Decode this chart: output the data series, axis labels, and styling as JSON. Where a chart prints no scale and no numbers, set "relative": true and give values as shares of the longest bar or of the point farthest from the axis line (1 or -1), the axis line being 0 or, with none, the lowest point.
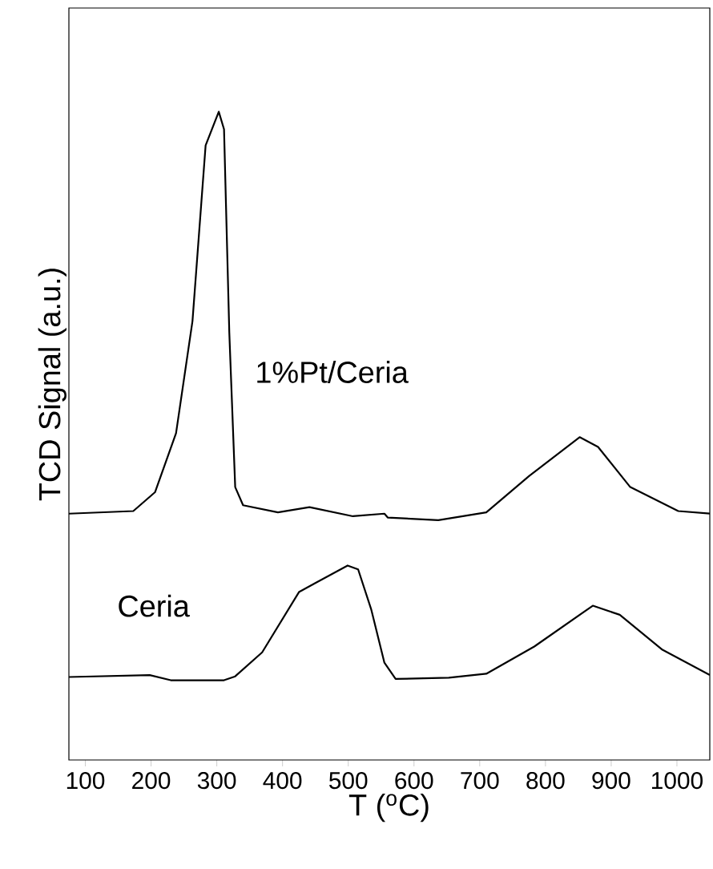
{
  "chart_data": {
    "type": "line",
    "relative": true,
    "xlabel": "T ($^{o}$C)",
    "ylabel": "TCD Signal (a.u.)",
    "xlim": [
      75,
      1050
    ],
    "xticks": [
      100,
      200,
      300,
      400,
      500,
      600,
      700,
      800,
      900,
      1000
    ],
    "grid": false,
    "legend": false,
    "marker": "none",
    "line_style": "solid",
    "series": [
      {
        "name": "1%Pt/Ceria",
        "color": "#000000",
        "x": [
          75,
          173,
          206,
          238,
          263,
          283,
          303,
          311,
          319,
          328,
          340,
          393,
          441,
          507,
          555,
          560,
          637,
          710,
          775,
          852,
          880,
          929,
          1002,
          1050
        ],
        "values": [
          0.38,
          0.384,
          0.413,
          0.504,
          0.677,
          0.948,
          1.0,
          0.973,
          0.66,
          0.421,
          0.393,
          0.382,
          0.39,
          0.376,
          0.38,
          0.374,
          0.37,
          0.382,
          0.438,
          0.498,
          0.483,
          0.421,
          0.384,
          0.38
        ]
      },
      {
        "name": "Ceria",
        "color": "#000000",
        "x": [
          75,
          198,
          230,
          311,
          328,
          369,
          425,
          450,
          499,
          515,
          535,
          555,
          572,
          653,
          710,
          783,
          872,
          913,
          978,
          1050
        ],
        "values": [
          0.128,
          0.131,
          0.123,
          0.123,
          0.129,
          0.166,
          0.259,
          0.273,
          0.3,
          0.294,
          0.232,
          0.15,
          0.125,
          0.127,
          0.133,
          0.175,
          0.238,
          0.224,
          0.17,
          0.131
        ]
      }
    ]
  }
}
